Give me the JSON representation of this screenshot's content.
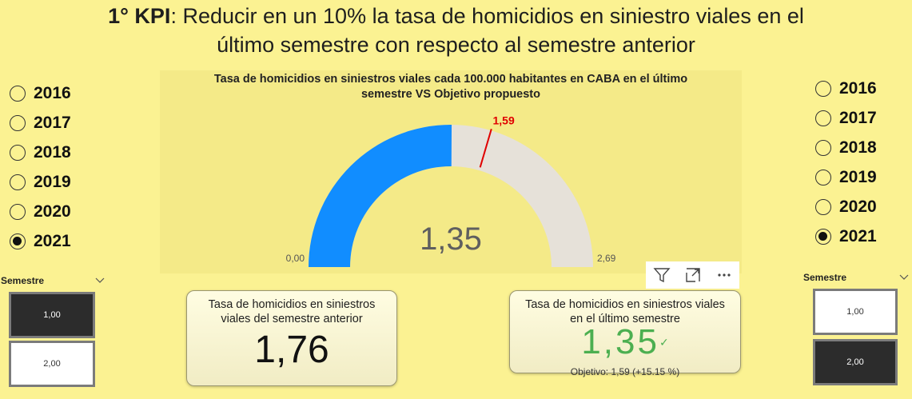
{
  "header": {
    "title_bold": "1° KPI",
    "title_line1": ": Reducir en un 10% la tasa de homicidios en siniestro viales en el",
    "title_line2": "último semestre con respecto al semestre anterior"
  },
  "left_year_slicer": {
    "items": [
      {
        "label": "2016",
        "selected": false
      },
      {
        "label": "2017",
        "selected": false
      },
      {
        "label": "2018",
        "selected": false
      },
      {
        "label": "2019",
        "selected": false
      },
      {
        "label": "2020",
        "selected": false
      },
      {
        "label": "2021",
        "selected": true
      }
    ]
  },
  "right_year_slicer": {
    "items": [
      {
        "label": "2016",
        "selected": false
      },
      {
        "label": "2017",
        "selected": false
      },
      {
        "label": "2018",
        "selected": false
      },
      {
        "label": "2019",
        "selected": false
      },
      {
        "label": "2020",
        "selected": false
      },
      {
        "label": "2021",
        "selected": true
      }
    ]
  },
  "gauge": {
    "title_line1": "Tasa de homicidios en siniestros viales cada 100.000 habitantes en CABA en el último",
    "title_line2": "semestre VS Objetivo propuesto",
    "value_label": "1,35",
    "min_label": "0,00",
    "max_label": "2,69",
    "target_label": "1,59",
    "fill_color": "#118dff",
    "track_color": "#e6e1d9",
    "target_color": "#e00000"
  },
  "chart_data": {
    "type": "gauge",
    "value": 1.35,
    "min": 0,
    "max": 2.69,
    "target": 1.59,
    "title": "Tasa de homicidios en siniestros viales cada 100.000 habitantes en CABA en el último semestre VS Objetivo propuesto"
  },
  "toolbar": {
    "icons": [
      "filter-icon",
      "focus-mode-icon",
      "more-options-icon"
    ]
  },
  "card_previous": {
    "title_line1": "Tasa de homicidios en siniestros",
    "title_line2": "viales del semestre anterior",
    "value": "1,76"
  },
  "card_last": {
    "title_line1": "Tasa de homicidios en siniestros viales",
    "title_line2": "en el último semestre",
    "value": "1,35",
    "check": "✓",
    "goal_text": "Objetivo: 1,59 (+15.15 %)",
    "value_color": "#4caf50"
  },
  "left_semestre": {
    "header": "Semestre",
    "options": [
      {
        "label": "1,00",
        "selected": true
      },
      {
        "label": "2,00",
        "selected": false
      }
    ]
  },
  "right_semestre": {
    "header": "Semestre",
    "options": [
      {
        "label": "1,00",
        "selected": false
      },
      {
        "label": "2,00",
        "selected": true
      }
    ]
  }
}
